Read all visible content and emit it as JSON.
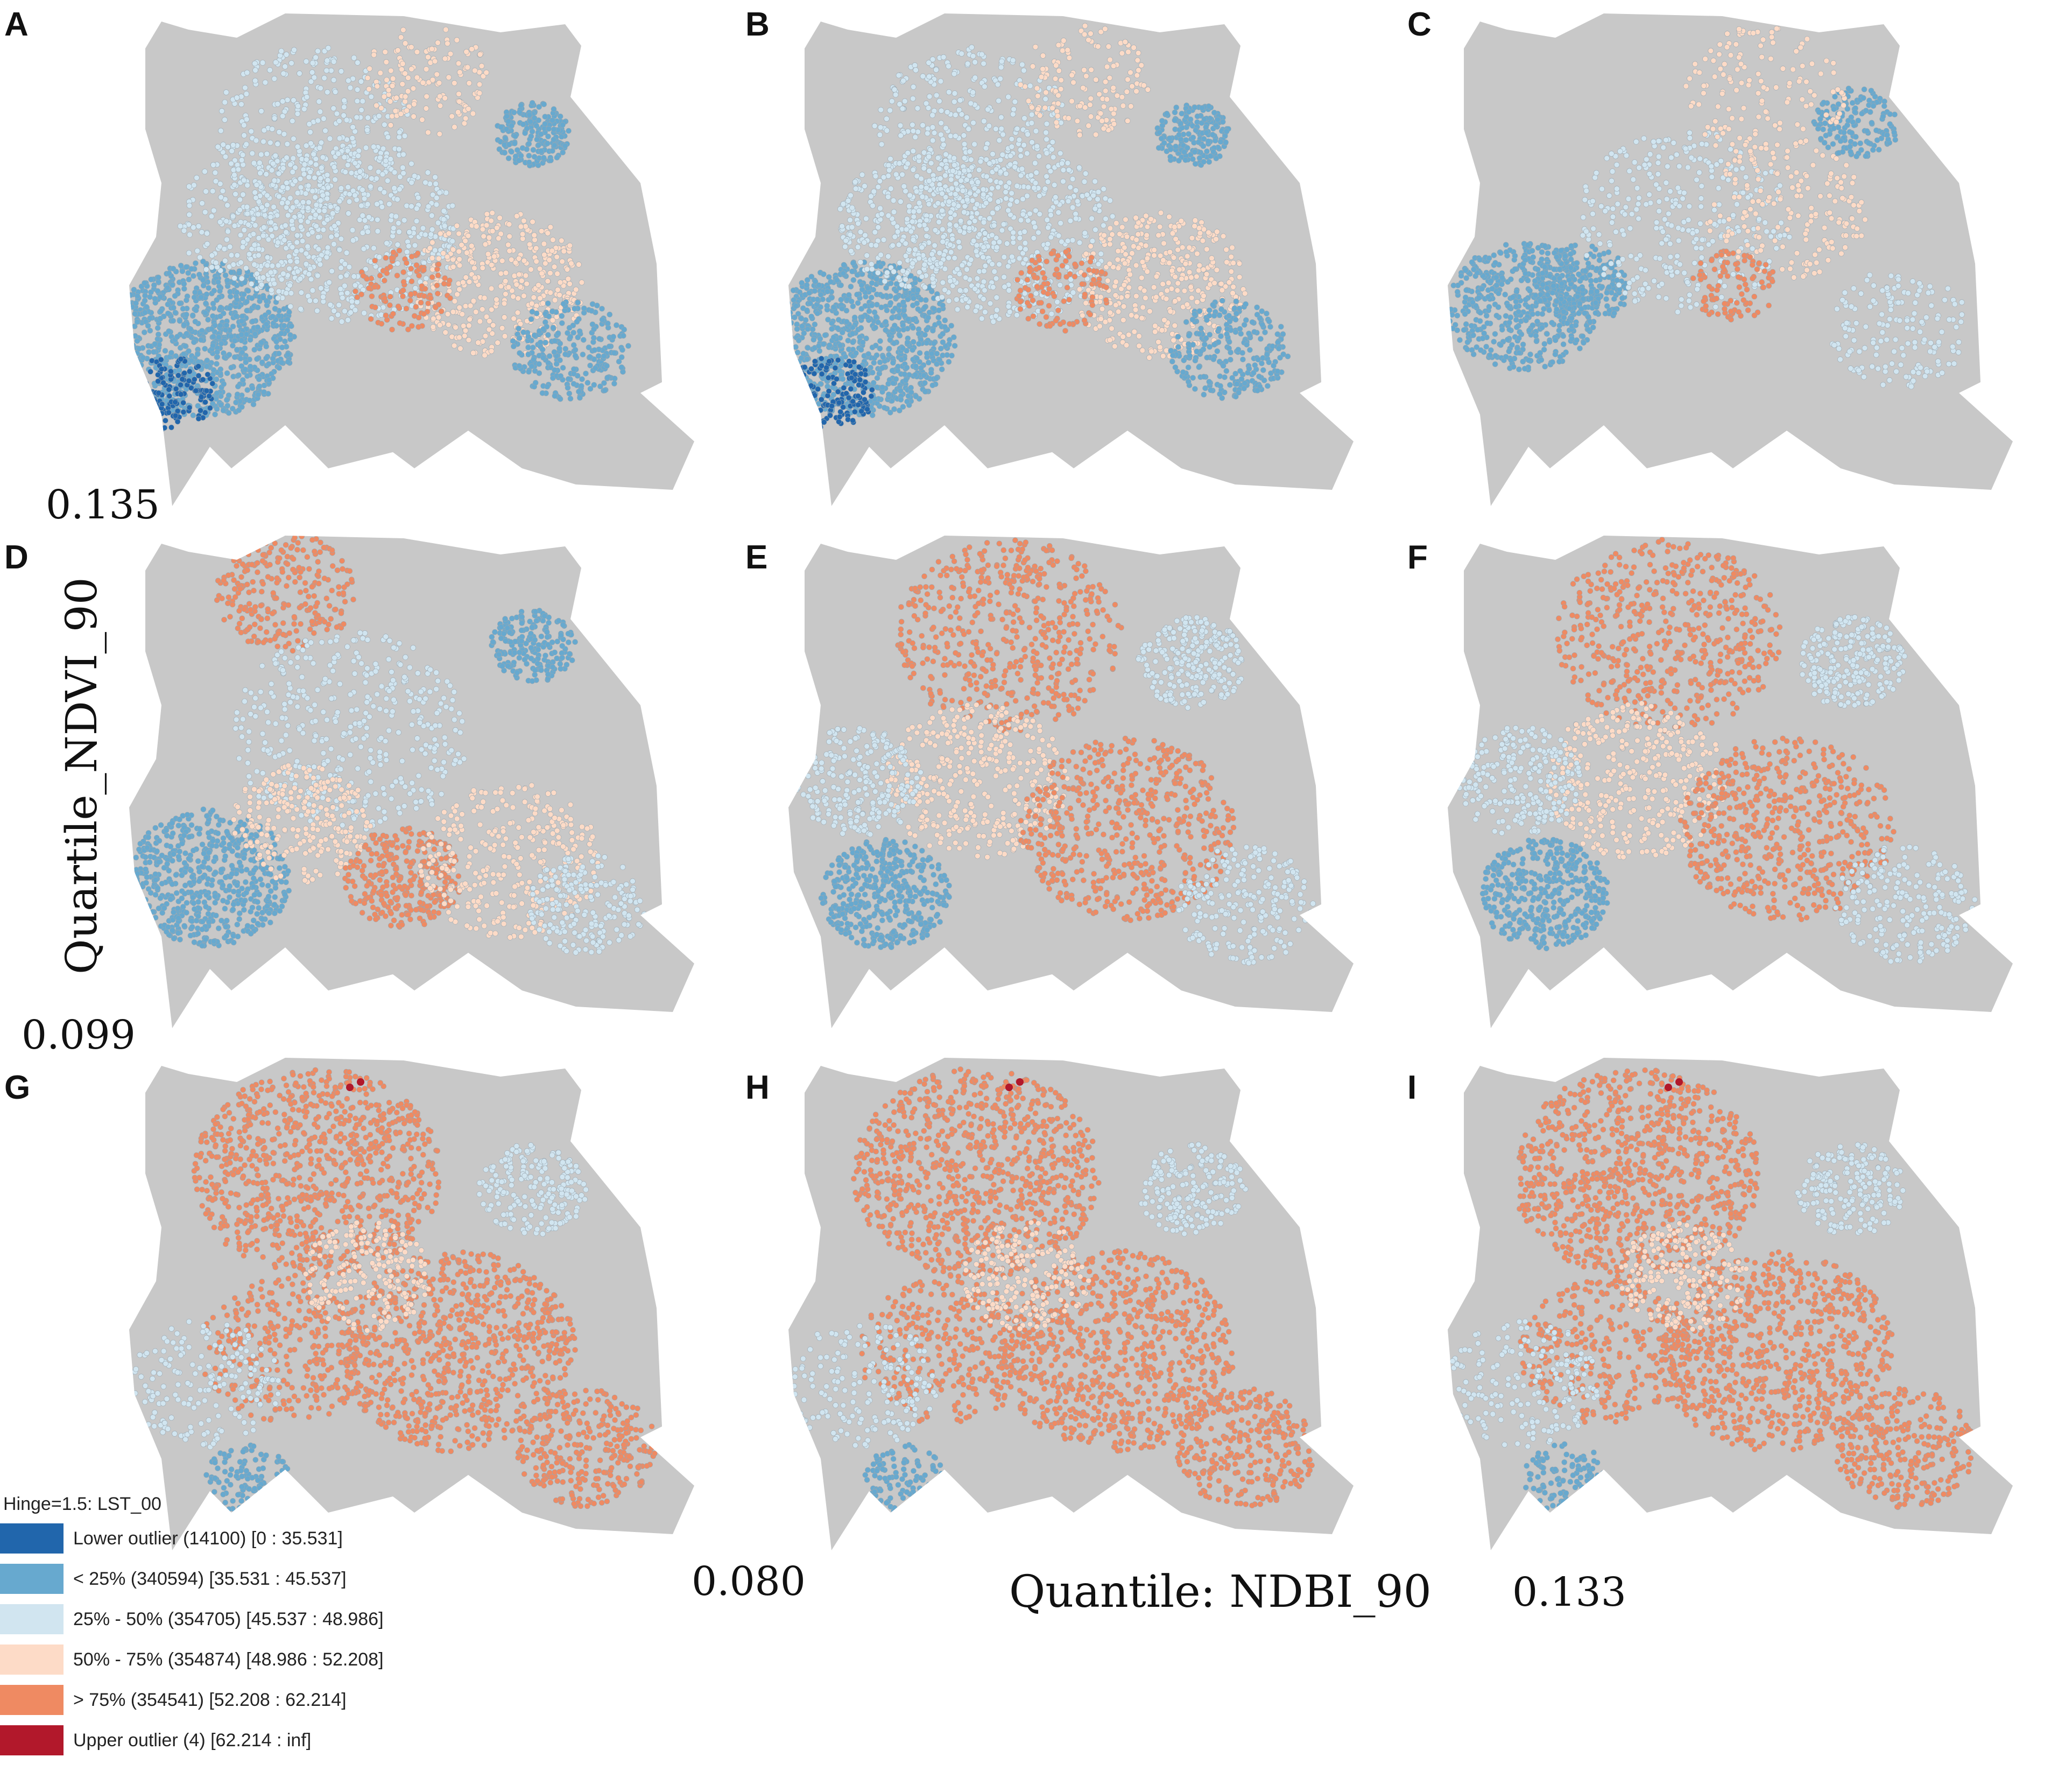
{
  "panels": [
    {
      "label": "A",
      "dominant": "blue-low"
    },
    {
      "label": "B",
      "dominant": "blue-low"
    },
    {
      "label": "C",
      "dominant": "sparse-blue"
    },
    {
      "label": "D",
      "dominant": "mixed"
    },
    {
      "label": "E",
      "dominant": "mixed-high"
    },
    {
      "label": "F",
      "dominant": "mixed-high"
    },
    {
      "label": "G",
      "dominant": "orange-high"
    },
    {
      "label": "H",
      "dominant": "orange-high"
    },
    {
      "label": "I",
      "dominant": "orange-high"
    }
  ],
  "annotations": {
    "value_a": "0.135",
    "value_d": "0.099",
    "value_h_left": "0.080",
    "value_i": "0.133",
    "row_label": "Quartile_NDVI_90",
    "column_label": "Quantile: NDBI_90"
  },
  "legend": {
    "title": "Hinge=1.5: LST_00",
    "items": [
      {
        "label": "Lower outlier (14100) [0 : 35.531]",
        "color": "#2166ac"
      },
      {
        "label": "< 25% (340594) [35.531 : 45.537]",
        "color": "#67a9cf"
      },
      {
        "label": "25% - 50% (354705) [45.537 : 48.986]",
        "color": "#d1e5f0"
      },
      {
        "label": "50% - 75% (354874) [48.986 : 52.208]",
        "color": "#fddbc7"
      },
      {
        "label": "> 75% (354541) [52.208 : 62.214]",
        "color": "#ef8a62"
      },
      {
        "label": "Upper outlier (4) [62.214 : inf]",
        "color": "#b2182b"
      }
    ]
  },
  "colors": {
    "background_region": "#c8c8c8",
    "lower_outlier": "#2166ac",
    "q1": "#67a9cf",
    "q2": "#d1e5f0",
    "q3": "#fddbc7",
    "q4": "#ef8a62",
    "upper_outlier": "#b2182b"
  }
}
